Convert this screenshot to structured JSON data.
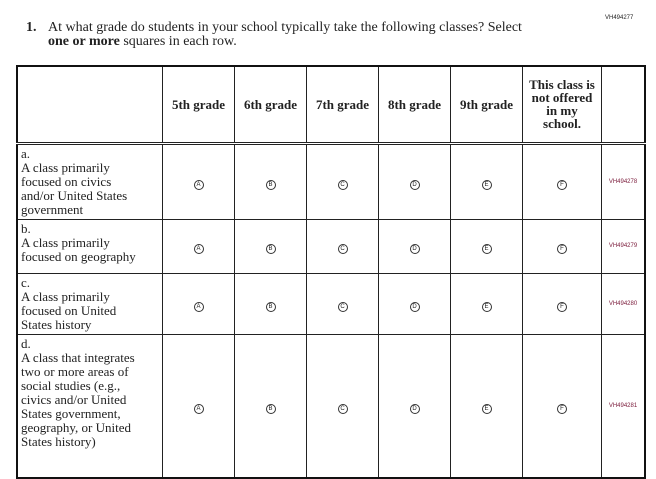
{
  "question_id": "VH494277",
  "question": {
    "number": "1.",
    "line1": "At what grade do students in your school typically take the following classes? Select",
    "bold": "one or more",
    "line2_rest": " squares in each row."
  },
  "columns": [
    "5th grade",
    "6th grade",
    "7th grade",
    "8th grade",
    "9th grade",
    "This class is not offered in my school."
  ],
  "bubble_letters": [
    "A",
    "B",
    "C",
    "D",
    "E",
    "F"
  ],
  "rows": [
    {
      "letter": "a.",
      "text": "A class primarily focused on civics and/or United States government",
      "id": "VH494278"
    },
    {
      "letter": "b.",
      "text": "A class primarily focused on geography",
      "id": "VH494279"
    },
    {
      "letter": "c.",
      "text": "A class primarily focused on United States history",
      "id": "VH494280"
    },
    {
      "letter": "d.",
      "text": "A class that integrates two or more areas of social studies (e.g., civics and/or United States government, geography, or United States history)",
      "id": "VH494281"
    }
  ]
}
